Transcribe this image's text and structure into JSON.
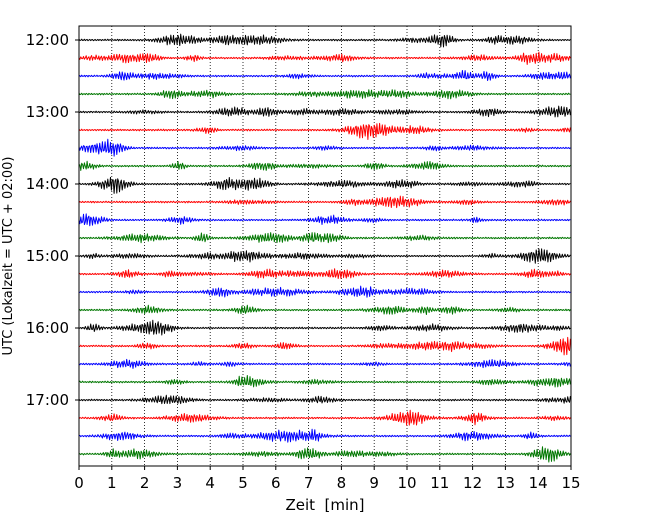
{
  "chart_data": {
    "type": "line",
    "title": "",
    "xlabel": "Zeit  [min]",
    "ylabel": "UTC (Lokalzeit = UTC + 02:00)",
    "xlim": [
      0,
      15
    ],
    "x_ticks": [
      "0",
      "1",
      "2",
      "3",
      "4",
      "5",
      "6",
      "7",
      "8",
      "9",
      "10",
      "11",
      "12",
      "13",
      "14",
      "15"
    ],
    "y_tick_labels": [
      "12:00",
      "13:00",
      "14:00",
      "15:00",
      "16:00",
      "17:00"
    ],
    "grid": "vertical dotted lines at each minute",
    "row_interval_minutes": 15,
    "start_time": "12:00",
    "trace_colors": [
      "#000000",
      "#ff0000",
      "#0000ff",
      "#007700"
    ],
    "rows": [
      {
        "time": "12:00",
        "color": "#000000"
      },
      {
        "time": "12:15",
        "color": "#ff0000"
      },
      {
        "time": "12:30",
        "color": "#0000ff"
      },
      {
        "time": "12:45",
        "color": "#007700"
      },
      {
        "time": "13:00",
        "color": "#000000"
      },
      {
        "time": "13:15",
        "color": "#ff0000"
      },
      {
        "time": "13:30",
        "color": "#0000ff"
      },
      {
        "time": "13:45",
        "color": "#007700"
      },
      {
        "time": "14:00",
        "color": "#000000"
      },
      {
        "time": "14:15",
        "color": "#ff0000"
      },
      {
        "time": "14:30",
        "color": "#0000ff"
      },
      {
        "time": "14:45",
        "color": "#007700"
      },
      {
        "time": "15:00",
        "color": "#000000"
      },
      {
        "time": "15:15",
        "color": "#ff0000"
      },
      {
        "time": "15:30",
        "color": "#0000ff"
      },
      {
        "time": "15:45",
        "color": "#007700"
      },
      {
        "time": "16:00",
        "color": "#000000"
      },
      {
        "time": "16:15",
        "color": "#ff0000"
      },
      {
        "time": "16:30",
        "color": "#0000ff"
      },
      {
        "time": "16:45",
        "color": "#007700"
      },
      {
        "time": "17:00",
        "color": "#000000"
      },
      {
        "time": "17:15",
        "color": "#ff0000"
      },
      {
        "time": "17:30",
        "color": "#0000ff"
      },
      {
        "time": "17:45",
        "color": "#007700"
      }
    ]
  }
}
